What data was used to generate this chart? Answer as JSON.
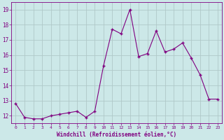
{
  "x": [
    0,
    1,
    2,
    3,
    4,
    5,
    6,
    7,
    8,
    9,
    10,
    11,
    12,
    13,
    14,
    15,
    16,
    17,
    18,
    19,
    20,
    21,
    22,
    23
  ],
  "y": [
    12.8,
    11.9,
    11.8,
    11.8,
    12.0,
    12.1,
    12.2,
    12.3,
    11.9,
    12.3,
    15.3,
    17.7,
    17.4,
    19.0,
    15.9,
    16.1,
    17.6,
    16.2,
    16.4,
    16.8,
    15.8,
    14.7,
    13.1,
    13.1
  ],
  "line_color": "#800080",
  "marker_color": "#800080",
  "bg_color": "#cce8e8",
  "grid_color": "#b0c8c8",
  "xlabel": "Windchill (Refroidissement éolien,°C)",
  "xlabel_color": "#800080",
  "tick_color": "#800080",
  "ylabel_ticks": [
    12,
    13,
    14,
    15,
    16,
    17,
    18,
    19
  ],
  "ylim": [
    11.5,
    19.5
  ],
  "xlim": [
    -0.5,
    23.5
  ]
}
